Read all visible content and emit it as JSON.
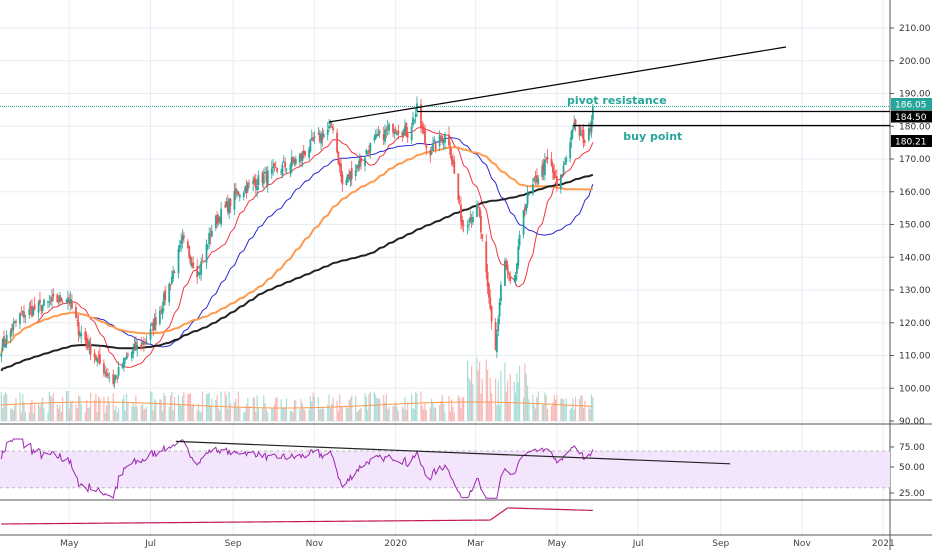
{
  "chart_data": {
    "type": "candlestick",
    "price_axis": {
      "ticks": [
        210,
        200,
        190,
        180,
        170,
        160,
        150,
        140,
        130,
        120,
        110,
        100,
        90
      ],
      "ylim": [
        90,
        210
      ]
    },
    "time_axis": {
      "labels": [
        {
          "label": "May",
          "date": "2019-05-01"
        },
        {
          "label": "Jul",
          "date": "2019-07-01"
        },
        {
          "label": "Sep",
          "date": "2019-09-01"
        },
        {
          "label": "Nov",
          "date": "2019-11-01"
        },
        {
          "label": "2020",
          "date": "2020-01-01"
        },
        {
          "label": "Mar",
          "date": "2020-03-01"
        },
        {
          "label": "May",
          "date": "2020-05-01"
        },
        {
          "label": "Jul",
          "date": "2020-07-01"
        },
        {
          "label": "Sep",
          "date": "2020-09-01"
        },
        {
          "label": "Nov",
          "date": "2020-11-01"
        },
        {
          "label": "2021",
          "date": "2021-01-01"
        }
      ],
      "range": [
        "2019-03-10",
        "2021-01-15"
      ]
    },
    "close_path": [
      [
        "2019-03-10",
        112
      ],
      [
        "2019-03-25",
        122
      ],
      [
        "2019-04-10",
        125
      ],
      [
        "2019-04-30",
        128
      ],
      [
        "2019-05-08",
        118
      ],
      [
        "2019-05-23",
        108
      ],
      [
        "2019-06-03",
        102
      ],
      [
        "2019-06-14",
        110
      ],
      [
        "2019-06-29",
        115
      ],
      [
        "2019-07-14",
        130
      ],
      [
        "2019-07-25",
        145
      ],
      [
        "2019-08-06",
        135
      ],
      [
        "2019-08-17",
        150
      ],
      [
        "2019-09-05",
        160
      ],
      [
        "2019-09-27",
        165
      ],
      [
        "2019-10-20",
        170
      ],
      [
        "2019-10-31",
        175
      ],
      [
        "2019-11-15",
        180
      ],
      [
        "2019-11-22",
        162
      ],
      [
        "2019-12-03",
        168
      ],
      [
        "2019-12-15",
        175
      ],
      [
        "2019-12-30",
        180
      ],
      [
        "2020-01-10",
        178
      ],
      [
        "2020-01-17",
        185
      ],
      [
        "2020-01-25",
        172
      ],
      [
        "2020-02-09",
        178
      ],
      [
        "2020-02-20",
        150
      ],
      [
        "2020-03-03",
        155
      ],
      [
        "2020-03-10",
        130
      ],
      [
        "2020-03-16",
        112
      ],
      [
        "2020-03-22",
        140
      ],
      [
        "2020-03-29",
        128
      ],
      [
        "2020-04-06",
        155
      ],
      [
        "2020-04-17",
        165
      ],
      [
        "2020-04-25",
        170
      ],
      [
        "2020-05-02",
        160
      ],
      [
        "2020-05-13",
        180
      ],
      [
        "2020-05-24",
        175
      ],
      [
        "2020-05-28",
        186
      ]
    ],
    "moving_averages": [
      {
        "period": 20,
        "color": "#f23645"
      },
      {
        "period": 50,
        "color": "#2a2ad0"
      },
      {
        "period": 100,
        "color": "#ff9a4d"
      },
      {
        "period": 200,
        "color": "#222222"
      }
    ],
    "price_labels": [
      {
        "value": "186.05",
        "bg": "#26a69a",
        "fg": "#ffffff"
      },
      {
        "value": "184.50",
        "bg": "#000000",
        "fg": "#ffffff"
      },
      {
        "value": "180.21",
        "bg": "#000000",
        "fg": "#ffffff"
      }
    ],
    "horizontal_lines": [
      {
        "price": 186.05,
        "style": "dotted",
        "color": "#26a69a",
        "from": "2019-03-10"
      },
      {
        "price": 184.5,
        "style": "solid",
        "color": "#000000",
        "from": "2020-01-17"
      },
      {
        "price": 180.21,
        "style": "solid",
        "color": "#000000",
        "from": "2020-05-13"
      }
    ],
    "trendlines": [
      {
        "from": [
          "2019-11-12",
          181.3
        ],
        "to": [
          "2020-10-20",
          204.2
        ],
        "color": "#000000"
      }
    ],
    "annotations": [
      {
        "text": "pivot resistance",
        "price": 188,
        "date": "2020-06-15",
        "color": "#26a69a"
      },
      {
        "text": "buy point",
        "price": 177,
        "date": "2020-07-12",
        "color": "#26a69a"
      }
    ],
    "rsi": {
      "ticks": [
        75,
        50,
        25
      ],
      "band": [
        30,
        70
      ],
      "trendline": {
        "from": [
          "2019-07-20",
          82
        ],
        "to": [
          "2020-09-08",
          54
        ]
      },
      "color": "#9c27b0"
    },
    "colors": {
      "up": "#26a69a",
      "down": "#ef5350",
      "grid": "#e6eef5"
    }
  }
}
